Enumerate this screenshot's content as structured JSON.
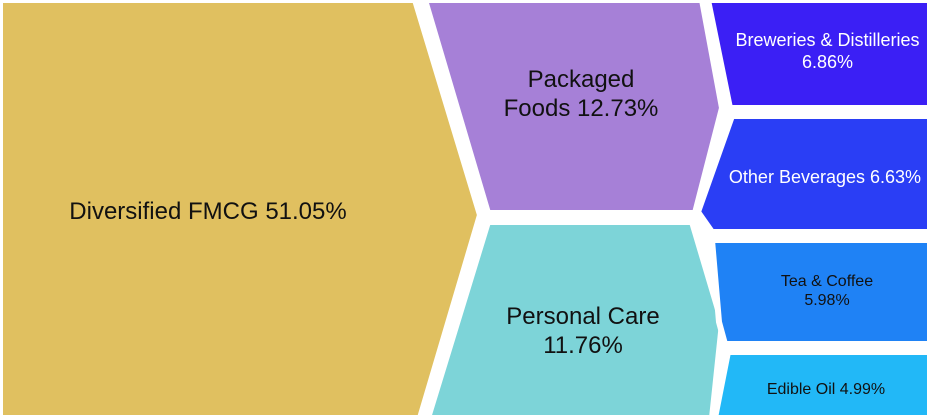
{
  "chart_data": {
    "type": "voronoi",
    "categories": [
      "Diversified FMCG",
      "Packaged Foods",
      "Personal Care",
      "Breweries & Distilleries",
      "Other Beverages",
      "Tea & Coffee",
      "Edible Oil"
    ],
    "values": [
      51.05,
      12.73,
      11.76,
      6.86,
      6.63,
      5.98,
      4.99
    ],
    "value_labels": [
      "51.05%",
      "12.73%",
      "11.76%",
      "6.86%",
      "6.63%",
      "5.98%",
      "4.99%"
    ],
    "colors": [
      "#e0c060",
      "#a680d7",
      "#7dd4d8",
      "#3b1ff5",
      "#2a3ef5",
      "#1f82f5",
      "#22b8f7"
    ]
  }
}
